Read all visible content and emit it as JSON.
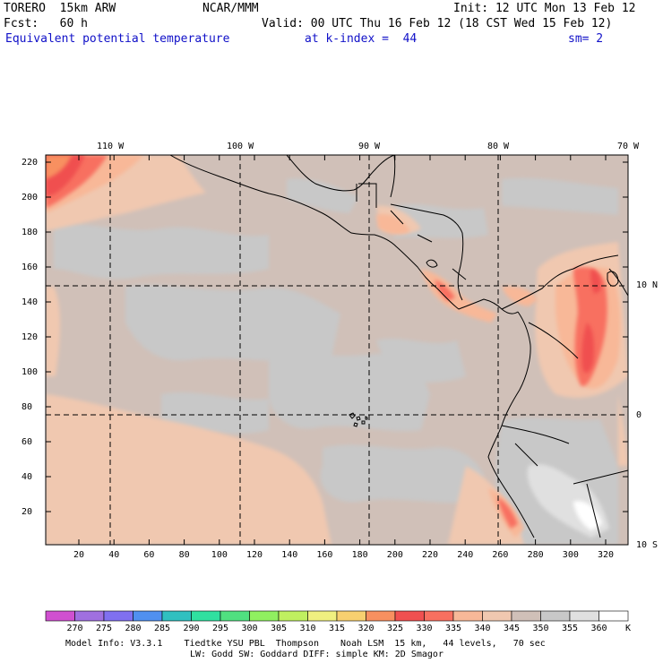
{
  "header": {
    "model": "TORERO  15km ARW",
    "org": "NCAR/MMM",
    "init": "Init: 12 UTC Mon 13 Feb 12",
    "fcst": "Fcst:   60 h",
    "valid": "Valid: 00 UTC Thu 16 Feb 12 (18 CST Wed 15 Feb 12)",
    "field": "Equivalent potential temperature",
    "level": "at k-index =  44",
    "smooth": "sm= 2"
  },
  "map": {
    "lon_labels": [
      "110 W",
      "100 W",
      "90 W",
      "80 W",
      "70 W"
    ],
    "lat_labels": [
      "10 N",
      "0",
      "10 S"
    ],
    "y_ticks": [
      "220",
      "200",
      "180",
      "160",
      "140",
      "120",
      "100",
      "80",
      "60",
      "40",
      "20"
    ],
    "x_ticks": [
      "20",
      "40",
      "60",
      "80",
      "100",
      "120",
      "140",
      "160",
      "180",
      "200",
      "220",
      "240",
      "260",
      "280",
      "300",
      "320"
    ]
  },
  "colorbar": {
    "levels": [
      "270",
      "275",
      "280",
      "285",
      "290",
      "295",
      "300",
      "305",
      "310",
      "315",
      "320",
      "325",
      "330",
      "335",
      "340",
      "345",
      "350",
      "355",
      "360"
    ],
    "unit": "K",
    "colors": [
      "#d050d0",
      "#a070e0",
      "#8070f0",
      "#5090f0",
      "#30c0c0",
      "#30e0a0",
      "#50e080",
      "#90f060",
      "#c0f060",
      "#f0f080",
      "#f8d070",
      "#f89060",
      "#f05050",
      "#f87060",
      "#f8b898",
      "#f0c8b0",
      "#d0c0b8",
      "#c8c8c8",
      "#e0e0e0",
      "#ffffff"
    ]
  },
  "footer": {
    "line1": "Model Info: V3.3.1    Tiedtke YSU PBL  Thompson    Noah LSM  15 km,   44 levels,   70 sec",
    "line2": "LW: Godd SW: Goddard DIFF: simple KM: 2D Smagor"
  }
}
